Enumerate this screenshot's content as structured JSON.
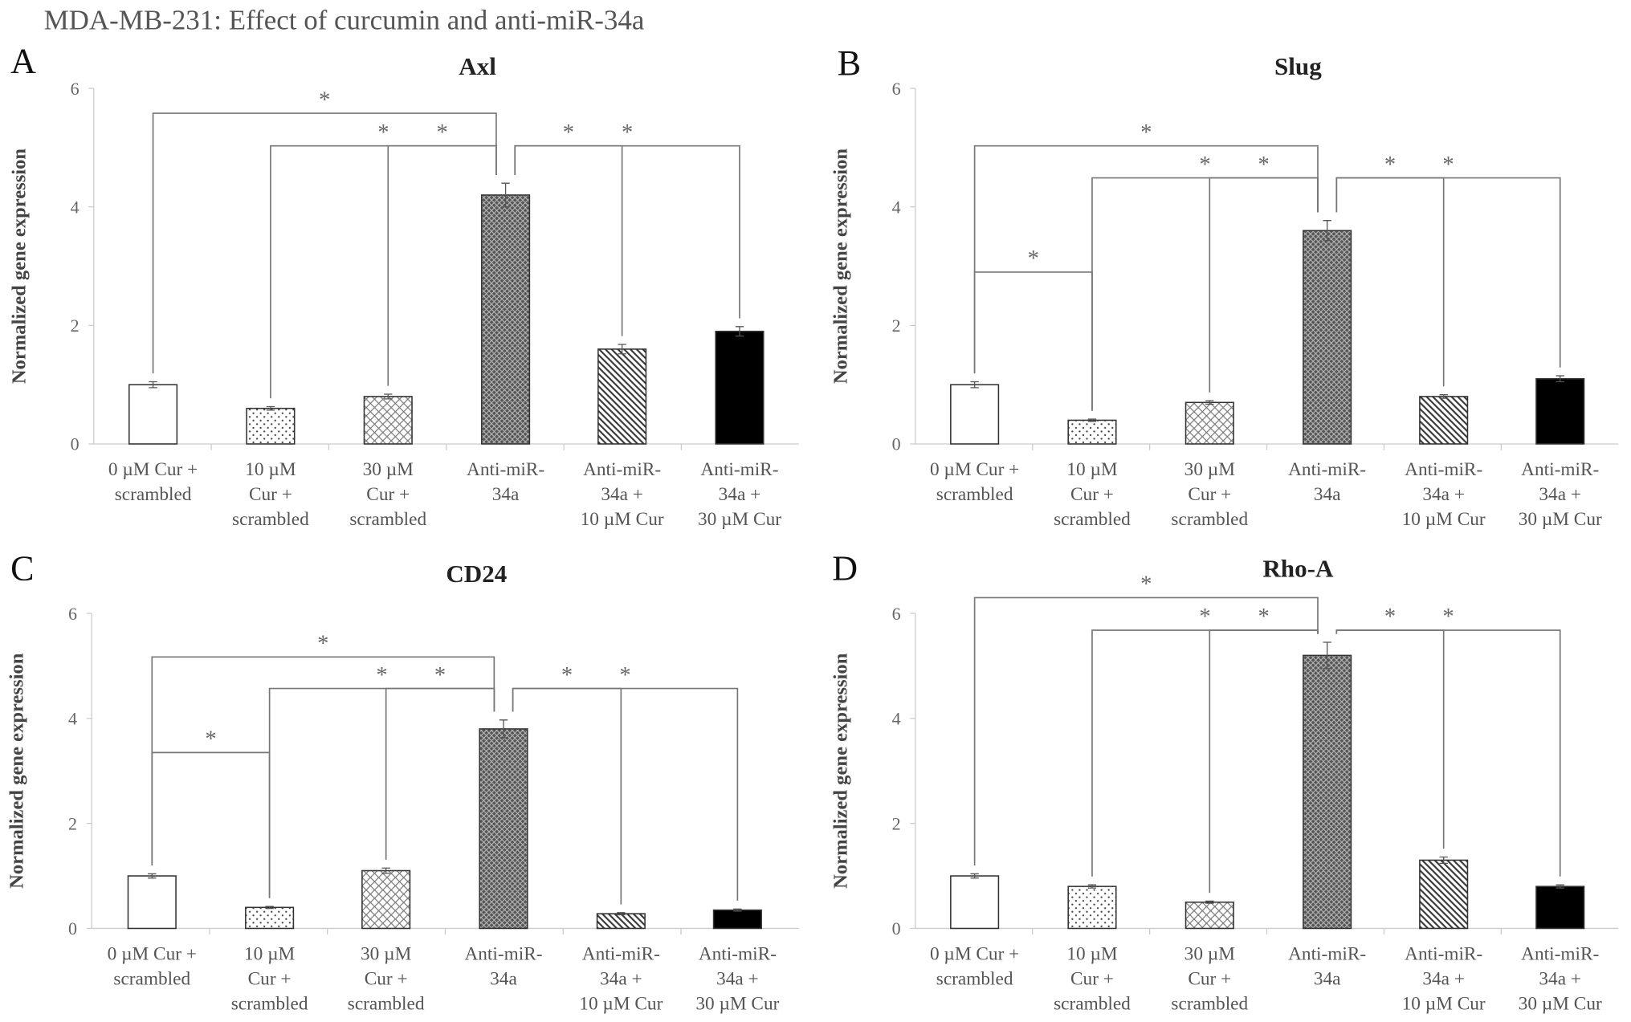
{
  "title": "MDA-MB-231: Effect of curcumin and anti-miR-34a",
  "chart_data": [
    {
      "type": "bar",
      "panel": "A",
      "title": "Axl",
      "ylabel": "Normalized gene expression",
      "ylim": [
        0,
        6
      ],
      "yticks": [
        "0",
        "2",
        "4",
        "6"
      ],
      "categories": [
        [
          "0 µM Cur +",
          "scrambled"
        ],
        [
          "10 µM",
          "Cur +",
          "scrambled"
        ],
        [
          "30 µM",
          "Cur +",
          "scrambled"
        ],
        [
          "Anti-miR-",
          "34a"
        ],
        [
          "Anti-miR-",
          "34a +",
          "10 µM Cur"
        ],
        [
          "Anti-miR-",
          "34a +",
          "30 µM Cur"
        ]
      ],
      "values": [
        1.0,
        0.6,
        0.8,
        4.2,
        1.6,
        1.9
      ],
      "errors": [
        0.05,
        0.03,
        0.04,
        0.2,
        0.08,
        0.08
      ],
      "significance": [
        {
          "pair": [
            0,
            3
          ],
          "y": 5.58,
          "label": "*"
        },
        {
          "pair": [
            1,
            3
          ],
          "y": 5.03,
          "label": "*"
        },
        {
          "pair": [
            2,
            3
          ],
          "y": 5.03,
          "label": "*"
        },
        {
          "pair": [
            3,
            4
          ],
          "y": 5.03,
          "label": "*"
        },
        {
          "pair": [
            3,
            5
          ],
          "y": 5.03,
          "label": "*"
        }
      ]
    },
    {
      "type": "bar",
      "panel": "B",
      "title": "Slug",
      "ylabel": "Normalized gene expression",
      "ylim": [
        0,
        6
      ],
      "yticks": [
        "0",
        "2",
        "4",
        "6"
      ],
      "categories": [
        [
          "0 µM Cur +",
          "scrambled"
        ],
        [
          "10 µM",
          "Cur +",
          "scrambled"
        ],
        [
          "30 µM",
          "Cur +",
          "scrambled"
        ],
        [
          "Anti-miR-",
          "34a"
        ],
        [
          "Anti-miR-",
          "34a +",
          "10 µM Cur"
        ],
        [
          "Anti-miR-",
          "34a +",
          "30 µM Cur"
        ]
      ],
      "values": [
        1.0,
        0.4,
        0.7,
        3.6,
        0.8,
        1.1
      ],
      "errors": [
        0.05,
        0.02,
        0.03,
        0.17,
        0.03,
        0.05
      ],
      "significance": [
        {
          "pair": [
            0,
            3
          ],
          "y": 5.03,
          "label": "*"
        },
        {
          "pair": [
            1,
            3
          ],
          "y": 4.49,
          "label": "*"
        },
        {
          "pair": [
            2,
            3
          ],
          "y": 4.49,
          "label": "*"
        },
        {
          "pair": [
            3,
            4
          ],
          "y": 4.49,
          "label": "*"
        },
        {
          "pair": [
            3,
            5
          ],
          "y": 4.49,
          "label": "*"
        },
        {
          "pair": [
            0,
            1
          ],
          "y": 2.9,
          "label": "*"
        }
      ]
    },
    {
      "type": "bar",
      "panel": "C",
      "title": "CD24",
      "ylabel": "Normalized gene expression",
      "ylim": [
        0,
        6
      ],
      "yticks": [
        "0",
        "2",
        "4",
        "6"
      ],
      "categories": [
        [
          "0 µM Cur +",
          "scrambled"
        ],
        [
          "10 µM",
          "Cur +",
          "scrambled"
        ],
        [
          "30 µM",
          "Cur +",
          "scrambled"
        ],
        [
          "Anti-miR-",
          "34a"
        ],
        [
          "Anti-miR-",
          "34a +",
          "10 µM Cur"
        ],
        [
          "Anti-miR-",
          "34a +",
          "30 µM Cur"
        ]
      ],
      "values": [
        1.0,
        0.4,
        1.1,
        3.8,
        0.28,
        0.35
      ],
      "errors": [
        0.04,
        0.02,
        0.05,
        0.17,
        0.02,
        0.02
      ],
      "significance": [
        {
          "pair": [
            0,
            3
          ],
          "y": 5.17,
          "label": "*"
        },
        {
          "pair": [
            1,
            3
          ],
          "y": 4.57,
          "label": "*"
        },
        {
          "pair": [
            2,
            3
          ],
          "y": 4.57,
          "label": "*"
        },
        {
          "pair": [
            3,
            4
          ],
          "y": 4.57,
          "label": "*"
        },
        {
          "pair": [
            3,
            5
          ],
          "y": 4.57,
          "label": "*"
        },
        {
          "pair": [
            0,
            1
          ],
          "y": 3.35,
          "label": "*"
        }
      ]
    },
    {
      "type": "bar",
      "panel": "D",
      "title": "Rho-A",
      "ylabel": "Normalized gene expression",
      "ylim": [
        0,
        6
      ],
      "yticks": [
        "0",
        "2",
        "4",
        "6"
      ],
      "categories": [
        [
          "0 µM Cur +",
          "scrambled"
        ],
        [
          "10 µM",
          "Cur +",
          "scrambled"
        ],
        [
          "30 µM",
          "Cur +",
          "scrambled"
        ],
        [
          "Anti-miR-",
          "34a"
        ],
        [
          "Anti-miR-",
          "34a +",
          "10 µM Cur"
        ],
        [
          "Anti-miR-",
          "34a +",
          "30 µM Cur"
        ]
      ],
      "values": [
        1.0,
        0.8,
        0.5,
        5.2,
        1.3,
        0.8
      ],
      "errors": [
        0.04,
        0.03,
        0.02,
        0.25,
        0.06,
        0.03
      ],
      "significance": [
        {
          "pair": [
            0,
            3
          ],
          "y": 6.3,
          "label": "*"
        },
        {
          "pair": [
            1,
            3
          ],
          "y": 5.68,
          "label": "*"
        },
        {
          "pair": [
            2,
            3
          ],
          "y": 5.68,
          "label": "*"
        },
        {
          "pair": [
            3,
            4
          ],
          "y": 5.68,
          "label": "*"
        },
        {
          "pair": [
            3,
            5
          ],
          "y": 5.68,
          "label": "*"
        }
      ]
    }
  ],
  "bar_fills": [
    "white",
    "dots",
    "light-crosshatch",
    "dark-crosshatch",
    "diagonal-stripes",
    "black"
  ]
}
